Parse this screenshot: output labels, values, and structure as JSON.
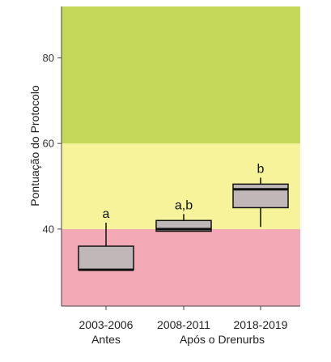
{
  "chart_data": {
    "type": "box",
    "ylabel": "Pontuação do Protocolo",
    "ylim": [
      22,
      92
    ],
    "yticks": [
      40,
      60,
      80
    ],
    "bands": [
      {
        "from": 22,
        "to": 40,
        "color": "#f4aab6"
      },
      {
        "from": 40,
        "to": 60,
        "color": "#f6f39a"
      },
      {
        "from": 60,
        "to": 92,
        "color": "#c6d85a"
      }
    ],
    "categories": [
      "2003-2006",
      "2008-2011",
      "2018-2019"
    ],
    "group_labels": [
      {
        "text": "Antes",
        "categories": [
          0
        ]
      },
      {
        "text": "Após o Drenurbs",
        "categories": [
          1,
          2
        ]
      }
    ],
    "boxes": [
      {
        "category": "2003-2006",
        "min": 30.5,
        "q1": 30.5,
        "median": 30.5,
        "q3": 36,
        "max": 41.5,
        "letter": "a"
      },
      {
        "category": "2008-2011",
        "min": 39.5,
        "q1": 39.5,
        "median": 40,
        "q3": 42,
        "max": 43.5,
        "letter": "a,b"
      },
      {
        "category": "2018-2019",
        "min": 40.5,
        "q1": 45,
        "median": 49.3,
        "q3": 50.5,
        "max": 52,
        "letter": "b"
      }
    ],
    "box_fill": "#c0b8b8",
    "legend": "none",
    "grid": false
  }
}
